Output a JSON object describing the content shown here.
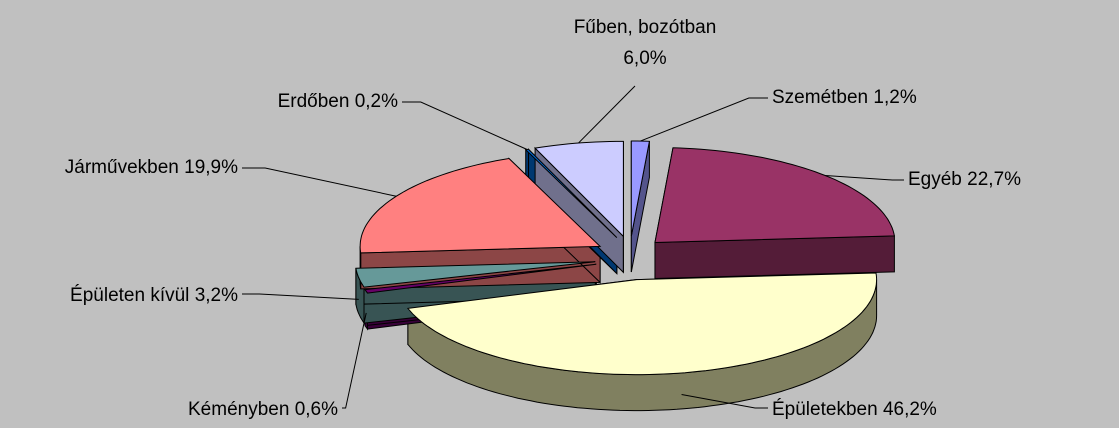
{
  "chart_data": {
    "type": "pie",
    "categories": [
      "Szemétben",
      "Egyéb",
      "Épületekben",
      "Kéményben",
      "Épületen kívül",
      "Járművekben",
      "Erdőben",
      "Fűben, bozótban"
    ],
    "values": [
      1.2,
      22.7,
      46.2,
      0.6,
      3.2,
      19.9,
      0.2,
      6.0
    ],
    "value_labels": [
      "1,2%",
      "22,7%",
      "46,2%",
      "0,6%",
      "3,2%",
      "19,9%",
      "0,2%",
      "6,0%"
    ],
    "colors": [
      "#9999ff",
      "#993366",
      "#ffffcc",
      "#660066",
      "#669999",
      "#ff8080",
      "#0066cc",
      "#ccccff"
    ]
  }
}
